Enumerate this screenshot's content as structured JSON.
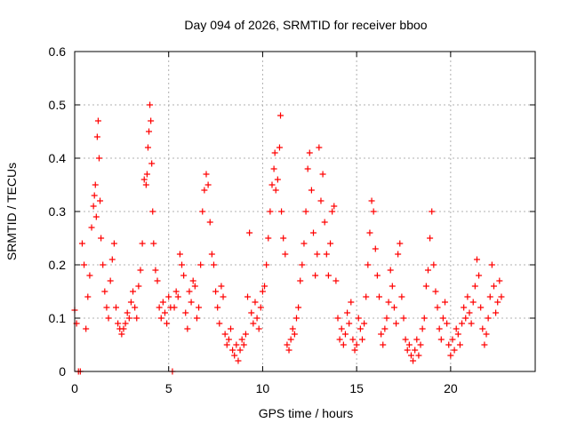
{
  "chart_data": {
    "type": "scatter",
    "title": "Day 094 of 2026, SRMTID for receiver bboo",
    "xlabel": "GPS time / hours",
    "ylabel": "SRMTID / TECUs",
    "xlim": [
      0,
      24.5
    ],
    "ylim": [
      0,
      0.6
    ],
    "xticks": [
      0,
      5,
      10,
      15,
      20
    ],
    "xtick_labels": [
      "0",
      "5",
      "10",
      "15",
      "20"
    ],
    "yticks": [
      0,
      0.1,
      0.2,
      0.3,
      0.4,
      0.5,
      0.6
    ],
    "ytick_labels": [
      "0",
      "0.1",
      "0.2",
      "0.3",
      "0.4",
      "0.5",
      "0.6"
    ],
    "grid": true,
    "marker": "+",
    "series_color": "#ff0000",
    "series": [
      {
        "name": "SRMTID",
        "points": [
          [
            0.0,
            0.115
          ],
          [
            0.1,
            0.09
          ],
          [
            0.2,
            0.0
          ],
          [
            0.3,
            0.0
          ],
          [
            0.4,
            0.24
          ],
          [
            0.5,
            0.2
          ],
          [
            0.6,
            0.08
          ],
          [
            0.7,
            0.14
          ],
          [
            0.8,
            0.18
          ],
          [
            0.9,
            0.27
          ],
          [
            1.0,
            0.31
          ],
          [
            1.05,
            0.33
          ],
          [
            1.1,
            0.35
          ],
          [
            1.15,
            0.29
          ],
          [
            1.2,
            0.44
          ],
          [
            1.25,
            0.47
          ],
          [
            1.3,
            0.4
          ],
          [
            1.35,
            0.32
          ],
          [
            1.4,
            0.25
          ],
          [
            1.5,
            0.2
          ],
          [
            1.6,
            0.15
          ],
          [
            1.7,
            0.12
          ],
          [
            1.8,
            0.1
          ],
          [
            1.9,
            0.17
          ],
          [
            2.0,
            0.21
          ],
          [
            2.1,
            0.24
          ],
          [
            2.2,
            0.12
          ],
          [
            2.3,
            0.09
          ],
          [
            2.4,
            0.08
          ],
          [
            2.5,
            0.07
          ],
          [
            2.6,
            0.08
          ],
          [
            2.7,
            0.09
          ],
          [
            2.8,
            0.11
          ],
          [
            2.9,
            0.1
          ],
          [
            3.0,
            0.13
          ],
          [
            3.1,
            0.15
          ],
          [
            3.2,
            0.12
          ],
          [
            3.3,
            0.1
          ],
          [
            3.4,
            0.16
          ],
          [
            3.5,
            0.19
          ],
          [
            3.6,
            0.24
          ],
          [
            3.7,
            0.36
          ],
          [
            3.8,
            0.35
          ],
          [
            3.85,
            0.37
          ],
          [
            3.9,
            0.42
          ],
          [
            3.95,
            0.45
          ],
          [
            4.0,
            0.5
          ],
          [
            4.05,
            0.47
          ],
          [
            4.1,
            0.39
          ],
          [
            4.15,
            0.3
          ],
          [
            4.2,
            0.24
          ],
          [
            4.3,
            0.19
          ],
          [
            4.4,
            0.17
          ],
          [
            4.5,
            0.12
          ],
          [
            4.6,
            0.1
          ],
          [
            4.7,
            0.13
          ],
          [
            4.8,
            0.11
          ],
          [
            4.9,
            0.09
          ],
          [
            5.0,
            0.14
          ],
          [
            5.1,
            0.12
          ],
          [
            5.2,
            0.0
          ],
          [
            5.3,
            0.12
          ],
          [
            5.4,
            0.15
          ],
          [
            5.5,
            0.14
          ],
          [
            5.6,
            0.22
          ],
          [
            5.7,
            0.2
          ],
          [
            5.8,
            0.18
          ],
          [
            5.9,
            0.11
          ],
          [
            6.0,
            0.08
          ],
          [
            6.1,
            0.15
          ],
          [
            6.2,
            0.13
          ],
          [
            6.3,
            0.17
          ],
          [
            6.4,
            0.16
          ],
          [
            6.5,
            0.1
          ],
          [
            6.6,
            0.12
          ],
          [
            6.7,
            0.2
          ],
          [
            6.8,
            0.3
          ],
          [
            6.9,
            0.34
          ],
          [
            7.0,
            0.37
          ],
          [
            7.1,
            0.35
          ],
          [
            7.2,
            0.28
          ],
          [
            7.3,
            0.22
          ],
          [
            7.4,
            0.2
          ],
          [
            7.5,
            0.15
          ],
          [
            7.6,
            0.12
          ],
          [
            7.7,
            0.09
          ],
          [
            7.8,
            0.16
          ],
          [
            7.9,
            0.14
          ],
          [
            8.0,
            0.07
          ],
          [
            8.1,
            0.05
          ],
          [
            8.2,
            0.06
          ],
          [
            8.3,
            0.08
          ],
          [
            8.4,
            0.04
          ],
          [
            8.5,
            0.03
          ],
          [
            8.6,
            0.05
          ],
          [
            8.7,
            0.02
          ],
          [
            8.8,
            0.04
          ],
          [
            8.9,
            0.06
          ],
          [
            9.0,
            0.05
          ],
          [
            9.1,
            0.07
          ],
          [
            9.2,
            0.14
          ],
          [
            9.3,
            0.26
          ],
          [
            9.4,
            0.11
          ],
          [
            9.5,
            0.09
          ],
          [
            9.6,
            0.13
          ],
          [
            9.7,
            0.1
          ],
          [
            9.8,
            0.08
          ],
          [
            9.9,
            0.12
          ],
          [
            10.0,
            0.15
          ],
          [
            10.1,
            0.16
          ],
          [
            10.2,
            0.2
          ],
          [
            10.3,
            0.25
          ],
          [
            10.4,
            0.3
          ],
          [
            10.5,
            0.35
          ],
          [
            10.6,
            0.38
          ],
          [
            10.65,
            0.41
          ],
          [
            10.7,
            0.34
          ],
          [
            10.8,
            0.36
          ],
          [
            10.9,
            0.42
          ],
          [
            10.95,
            0.48
          ],
          [
            11.0,
            0.3
          ],
          [
            11.1,
            0.25
          ],
          [
            11.2,
            0.22
          ],
          [
            11.3,
            0.05
          ],
          [
            11.4,
            0.04
          ],
          [
            11.5,
            0.06
          ],
          [
            11.6,
            0.08
          ],
          [
            11.7,
            0.07
          ],
          [
            11.8,
            0.1
          ],
          [
            11.9,
            0.12
          ],
          [
            12.0,
            0.17
          ],
          [
            12.1,
            0.2
          ],
          [
            12.2,
            0.24
          ],
          [
            12.3,
            0.3
          ],
          [
            12.4,
            0.38
          ],
          [
            12.5,
            0.41
          ],
          [
            12.6,
            0.34
          ],
          [
            12.7,
            0.26
          ],
          [
            12.8,
            0.18
          ],
          [
            12.9,
            0.22
          ],
          [
            13.0,
            0.42
          ],
          [
            13.1,
            0.32
          ],
          [
            13.2,
            0.37
          ],
          [
            13.3,
            0.28
          ],
          [
            13.4,
            0.22
          ],
          [
            13.5,
            0.18
          ],
          [
            13.6,
            0.24
          ],
          [
            13.7,
            0.3
          ],
          [
            13.8,
            0.31
          ],
          [
            13.9,
            0.17
          ],
          [
            14.0,
            0.1
          ],
          [
            14.1,
            0.06
          ],
          [
            14.2,
            0.08
          ],
          [
            14.3,
            0.05
          ],
          [
            14.4,
            0.07
          ],
          [
            14.5,
            0.11
          ],
          [
            14.6,
            0.09
          ],
          [
            14.7,
            0.13
          ],
          [
            14.8,
            0.06
          ],
          [
            14.9,
            0.04
          ],
          [
            15.0,
            0.05
          ],
          [
            15.1,
            0.1
          ],
          [
            15.2,
            0.08
          ],
          [
            15.3,
            0.06
          ],
          [
            15.4,
            0.09
          ],
          [
            15.5,
            0.14
          ],
          [
            15.6,
            0.2
          ],
          [
            15.7,
            0.26
          ],
          [
            15.8,
            0.32
          ],
          [
            15.9,
            0.3
          ],
          [
            16.0,
            0.23
          ],
          [
            16.1,
            0.18
          ],
          [
            16.2,
            0.14
          ],
          [
            16.3,
            0.07
          ],
          [
            16.4,
            0.05
          ],
          [
            16.5,
            0.08
          ],
          [
            16.6,
            0.1
          ],
          [
            16.7,
            0.13
          ],
          [
            16.8,
            0.19
          ],
          [
            16.9,
            0.16
          ],
          [
            17.0,
            0.12
          ],
          [
            17.1,
            0.09
          ],
          [
            17.2,
            0.22
          ],
          [
            17.3,
            0.24
          ],
          [
            17.4,
            0.14
          ],
          [
            17.5,
            0.1
          ],
          [
            17.6,
            0.06
          ],
          [
            17.7,
            0.04
          ],
          [
            17.8,
            0.05
          ],
          [
            17.9,
            0.03
          ],
          [
            18.0,
            0.02
          ],
          [
            18.1,
            0.04
          ],
          [
            18.2,
            0.06
          ],
          [
            18.3,
            0.03
          ],
          [
            18.4,
            0.05
          ],
          [
            18.5,
            0.08
          ],
          [
            18.6,
            0.1
          ],
          [
            18.7,
            0.16
          ],
          [
            18.8,
            0.19
          ],
          [
            18.9,
            0.25
          ],
          [
            19.0,
            0.3
          ],
          [
            19.1,
            0.2
          ],
          [
            19.2,
            0.15
          ],
          [
            19.3,
            0.12
          ],
          [
            19.4,
            0.08
          ],
          [
            19.5,
            0.06
          ],
          [
            19.6,
            0.1
          ],
          [
            19.7,
            0.13
          ],
          [
            19.8,
            0.09
          ],
          [
            19.9,
            0.05
          ],
          [
            20.0,
            0.03
          ],
          [
            20.1,
            0.06
          ],
          [
            20.2,
            0.04
          ],
          [
            20.3,
            0.08
          ],
          [
            20.4,
            0.07
          ],
          [
            20.5,
            0.05
          ],
          [
            20.6,
            0.09
          ],
          [
            20.7,
            0.12
          ],
          [
            20.8,
            0.1
          ],
          [
            20.9,
            0.14
          ],
          [
            21.0,
            0.11
          ],
          [
            21.1,
            0.09
          ],
          [
            21.2,
            0.13
          ],
          [
            21.3,
            0.16
          ],
          [
            21.4,
            0.21
          ],
          [
            21.5,
            0.18
          ],
          [
            21.6,
            0.12
          ],
          [
            21.7,
            0.08
          ],
          [
            21.8,
            0.05
          ],
          [
            21.9,
            0.07
          ],
          [
            22.0,
            0.1
          ],
          [
            22.1,
            0.14
          ],
          [
            22.2,
            0.2
          ],
          [
            22.3,
            0.16
          ],
          [
            22.4,
            0.11
          ],
          [
            22.5,
            0.13
          ],
          [
            22.6,
            0.17
          ],
          [
            22.7,
            0.14
          ]
        ]
      }
    ]
  }
}
